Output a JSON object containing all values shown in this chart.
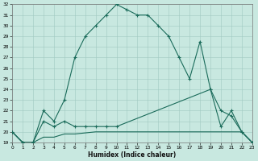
{
  "xlabel": "Humidex (Indice chaleur)",
  "bg_color": "#c8e8e0",
  "line_color": "#1a6b5a",
  "grid_color": "#a0c8c0",
  "xlim": [
    0,
    23
  ],
  "ylim": [
    19,
    32
  ],
  "xtick_labels": [
    "0",
    "1",
    "2",
    "3",
    "4",
    "5",
    "6",
    "7",
    "8",
    "9",
    "10",
    "11",
    "12",
    "13",
    "14",
    "15",
    "16",
    "17",
    "18",
    "19",
    "20",
    "21",
    "22",
    "23"
  ],
  "ytick_labels": [
    "19",
    "20",
    "21",
    "22",
    "23",
    "24",
    "25",
    "26",
    "27",
    "28",
    "29",
    "30",
    "31",
    "32"
  ],
  "yticks": [
    19,
    20,
    21,
    22,
    23,
    24,
    25,
    26,
    27,
    28,
    29,
    30,
    31,
    32
  ],
  "series1_x": [
    0,
    1,
    2,
    3,
    4,
    5,
    6,
    7,
    8,
    9,
    10,
    11,
    12,
    13,
    14,
    15,
    16,
    17,
    18,
    19,
    20,
    21,
    22,
    23
  ],
  "series1_y": [
    20,
    19,
    19,
    22,
    21,
    23,
    27,
    29,
    30,
    31,
    32,
    31.5,
    31,
    31,
    30,
    29,
    27,
    25,
    28.5,
    24,
    20.5,
    22,
    20,
    19
  ],
  "series2_x": [
    0,
    1,
    2,
    3,
    4,
    5,
    6,
    7,
    8,
    9,
    10,
    19,
    20,
    21,
    22,
    23
  ],
  "series2_y": [
    20,
    19,
    19,
    21,
    20.5,
    21,
    20.5,
    20.5,
    20.5,
    20.5,
    20.5,
    24,
    22,
    21.5,
    20,
    19
  ],
  "series3_x": [
    0,
    1,
    2,
    3,
    4,
    5,
    6,
    7,
    8,
    9,
    10,
    11,
    12,
    13,
    14,
    15,
    16,
    17,
    18,
    19,
    20,
    21,
    22,
    23
  ],
  "series3_y": [
    20,
    19,
    19,
    19.5,
    19.5,
    19.8,
    19.8,
    19.9,
    20,
    20,
    20,
    20,
    20,
    20,
    20,
    20,
    20,
    20,
    20,
    20,
    20,
    20,
    20,
    19
  ]
}
